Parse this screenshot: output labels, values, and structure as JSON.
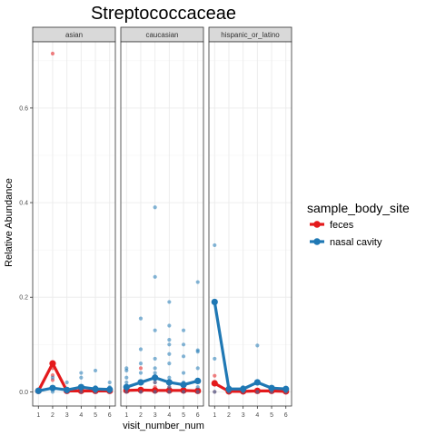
{
  "chart_data": {
    "type": "scatter",
    "title": "Streptococcaceae",
    "xlabel": "visit_number_num",
    "ylabel": "Relative Abundance",
    "ylim": [
      -0.03,
      0.74
    ],
    "xlim": [
      0.6,
      6.4
    ],
    "x_ticks": [
      1,
      2,
      3,
      4,
      5,
      6
    ],
    "y_ticks": [
      0.0,
      0.2,
      0.4,
      0.6
    ],
    "y_tick_labels": [
      "0.0",
      "0.2",
      "0.4",
      "0.6"
    ],
    "grid": true,
    "legend": {
      "title": "sample_body_site",
      "placement": "right",
      "entries": [
        {
          "name": "feces",
          "color": "#E41A1C"
        },
        {
          "name": "nasal cavity",
          "color": "#1F78B4"
        }
      ]
    },
    "panels": [
      {
        "label": "asian",
        "series": [
          {
            "name": "feces",
            "color": "#E41A1C",
            "mean": [
              [
                1,
                0.002
              ],
              [
                2,
                0.06
              ],
              [
                3,
                0.002
              ],
              [
                4,
                0.002
              ],
              [
                5,
                0.002
              ],
              [
                6,
                0.002
              ]
            ],
            "points": [
              [
                1,
                0.0
              ],
              [
                1,
                0.003
              ],
              [
                2,
                0.715
              ],
              [
                2,
                0.05
              ],
              [
                2,
                0.035
              ],
              [
                2,
                0.025
              ],
              [
                3,
                0.0
              ],
              [
                3,
                0.005
              ],
              [
                4,
                0.0
              ],
              [
                4,
                0.004
              ],
              [
                5,
                0.0
              ],
              [
                6,
                0.0
              ],
              [
                6,
                0.002
              ]
            ]
          },
          {
            "name": "nasal cavity",
            "color": "#1F78B4",
            "mean": [
              [
                1,
                0.002
              ],
              [
                2,
                0.008
              ],
              [
                3,
                0.004
              ],
              [
                4,
                0.01
              ],
              [
                5,
                0.006
              ],
              [
                6,
                0.005
              ]
            ],
            "points": [
              [
                1,
                0.0
              ],
              [
                1,
                0.005
              ],
              [
                2,
                0.0
              ],
              [
                2,
                0.01
              ],
              [
                2,
                0.03
              ],
              [
                3,
                0.0
              ],
              [
                3,
                0.02
              ],
              [
                4,
                0.0
              ],
              [
                4,
                0.01
              ],
              [
                4,
                0.04
              ],
              [
                4,
                0.03
              ],
              [
                5,
                0.0
              ],
              [
                5,
                0.045
              ],
              [
                5,
                0.01
              ],
              [
                6,
                0.0
              ],
              [
                6,
                0.02
              ],
              [
                6,
                0.01
              ]
            ]
          }
        ]
      },
      {
        "label": "caucasian",
        "series": [
          {
            "name": "feces",
            "color": "#E41A1C",
            "mean": [
              [
                1,
                0.003
              ],
              [
                2,
                0.004
              ],
              [
                3,
                0.003
              ],
              [
                4,
                0.003
              ],
              [
                5,
                0.003
              ],
              [
                6,
                0.002
              ]
            ],
            "points": [
              [
                1,
                0.0
              ],
              [
                1,
                0.01
              ],
              [
                2,
                0.0
              ],
              [
                2,
                0.05
              ],
              [
                2,
                0.02
              ],
              [
                3,
                0.0
              ],
              [
                3,
                0.02
              ],
              [
                3,
                0.01
              ],
              [
                4,
                0.0
              ],
              [
                4,
                0.01
              ],
              [
                5,
                0.0
              ],
              [
                5,
                0.005
              ],
              [
                6,
                0.0
              ]
            ]
          },
          {
            "name": "nasal cavity",
            "color": "#1F78B4",
            "mean": [
              [
                1,
                0.01
              ],
              [
                2,
                0.02
              ],
              [
                3,
                0.03
              ],
              [
                4,
                0.02
              ],
              [
                5,
                0.015
              ],
              [
                6,
                0.023
              ]
            ],
            "points": [
              [
                1,
                0.0
              ],
              [
                1,
                0.01
              ],
              [
                1,
                0.02
              ],
              [
                1,
                0.03
              ],
              [
                1,
                0.045
              ],
              [
                1,
                0.05
              ],
              [
                2,
                0.0
              ],
              [
                2,
                0.02
              ],
              [
                2,
                0.04
              ],
              [
                2,
                0.06
              ],
              [
                2,
                0.09
              ],
              [
                2,
                0.155
              ],
              [
                3,
                0.0
              ],
              [
                3,
                0.02
              ],
              [
                3,
                0.04
              ],
              [
                3,
                0.05
              ],
              [
                3,
                0.07
              ],
              [
                3,
                0.13
              ],
              [
                3,
                0.243
              ],
              [
                3,
                0.39
              ],
              [
                4,
                0.0
              ],
              [
                4,
                0.01
              ],
              [
                4,
                0.03
              ],
              [
                4,
                0.06
              ],
              [
                4,
                0.08
              ],
              [
                4,
                0.1
              ],
              [
                4,
                0.11
              ],
              [
                4,
                0.14
              ],
              [
                4,
                0.19
              ],
              [
                5,
                0.0
              ],
              [
                5,
                0.02
              ],
              [
                5,
                0.04
              ],
              [
                5,
                0.075
              ],
              [
                5,
                0.1
              ],
              [
                5,
                0.13
              ],
              [
                6,
                0.0
              ],
              [
                6,
                0.01
              ],
              [
                6,
                0.025
              ],
              [
                6,
                0.05
              ],
              [
                6,
                0.085
              ],
              [
                6,
                0.088
              ],
              [
                6,
                0.232
              ]
            ]
          }
        ]
      },
      {
        "label": "hispanic_or_latino",
        "series": [
          {
            "name": "feces",
            "color": "#E41A1C",
            "mean": [
              [
                1,
                0.018
              ],
              [
                2,
                0.001
              ],
              [
                3,
                0.001
              ],
              [
                4,
                0.002
              ],
              [
                5,
                0.002
              ],
              [
                6,
                0.001
              ]
            ],
            "points": [
              [
                1,
                0.0
              ],
              [
                1,
                0.034
              ],
              [
                1,
                0.02
              ],
              [
                2,
                0.0
              ],
              [
                3,
                0.0
              ],
              [
                3,
                0.002
              ],
              [
                4,
                0.0
              ],
              [
                4,
                0.003
              ],
              [
                5,
                0.0
              ],
              [
                6,
                0.0
              ]
            ]
          },
          {
            "name": "nasal cavity",
            "color": "#1F78B4",
            "mean": [
              [
                1,
                0.19
              ],
              [
                2,
                0.006
              ],
              [
                3,
                0.006
              ],
              [
                4,
                0.02
              ],
              [
                5,
                0.008
              ],
              [
                6,
                0.006
              ]
            ],
            "points": [
              [
                1,
                0.0
              ],
              [
                1,
                0.31
              ],
              [
                1,
                0.07
              ],
              [
                2,
                0.0
              ],
              [
                2,
                0.01
              ],
              [
                3,
                0.0
              ],
              [
                3,
                0.01
              ],
              [
                4,
                0.0
              ],
              [
                4,
                0.098
              ],
              [
                4,
                0.02
              ],
              [
                5,
                0.0
              ],
              [
                5,
                0.01
              ],
              [
                6,
                0.0
              ],
              [
                6,
                0.008
              ]
            ]
          }
        ]
      }
    ]
  }
}
